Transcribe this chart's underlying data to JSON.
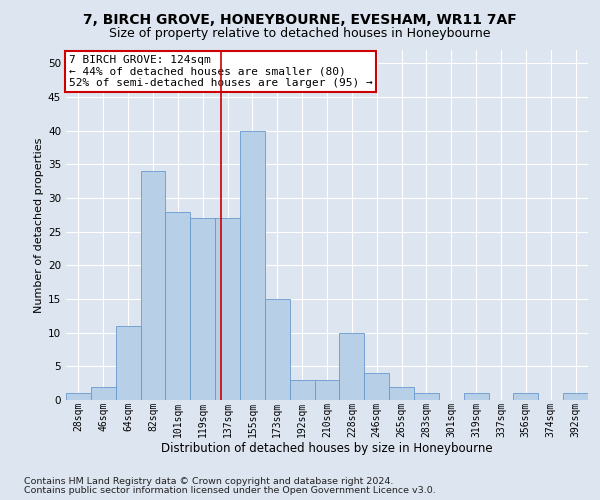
{
  "title1": "7, BIRCH GROVE, HONEYBOURNE, EVESHAM, WR11 7AF",
  "title2": "Size of property relative to detached houses in Honeybourne",
  "xlabel": "Distribution of detached houses by size in Honeybourne",
  "ylabel": "Number of detached properties",
  "footer1": "Contains HM Land Registry data © Crown copyright and database right 2024.",
  "footer2": "Contains public sector information licensed under the Open Government Licence v3.0.",
  "annotation_line1": "7 BIRCH GROVE: 124sqm",
  "annotation_line2": "← 44% of detached houses are smaller (80)",
  "annotation_line3": "52% of semi-detached houses are larger (95) →",
  "bar_labels": [
    "28sqm",
    "46sqm",
    "64sqm",
    "82sqm",
    "101sqm",
    "119sqm",
    "137sqm",
    "155sqm",
    "173sqm",
    "192sqm",
    "210sqm",
    "228sqm",
    "246sqm",
    "265sqm",
    "283sqm",
    "301sqm",
    "319sqm",
    "337sqm",
    "356sqm",
    "374sqm",
    "392sqm"
  ],
  "bar_values": [
    1,
    2,
    11,
    34,
    28,
    27,
    27,
    40,
    15,
    3,
    3,
    10,
    4,
    2,
    1,
    0,
    1,
    0,
    1,
    0,
    1
  ],
  "bar_color": "#b8cfe8",
  "bar_edge_color": "#6699cc",
  "bar_edge_width": 0.6,
  "red_line_x": 5.72,
  "ylim": [
    0,
    52
  ],
  "yticks": [
    0,
    5,
    10,
    15,
    20,
    25,
    30,
    35,
    40,
    45,
    50
  ],
  "bg_color": "#dde5f0",
  "plot_bg_color": "#dde5f0",
  "annotation_box_color": "#ffffff",
  "annotation_box_edge": "#cc0000",
  "red_line_color": "#cc0000",
  "title1_fontsize": 10,
  "title2_fontsize": 9,
  "annotation_fontsize": 8,
  "tick_fontsize": 7,
  "ylabel_fontsize": 8,
  "xlabel_fontsize": 8.5,
  "footer_fontsize": 6.8
}
